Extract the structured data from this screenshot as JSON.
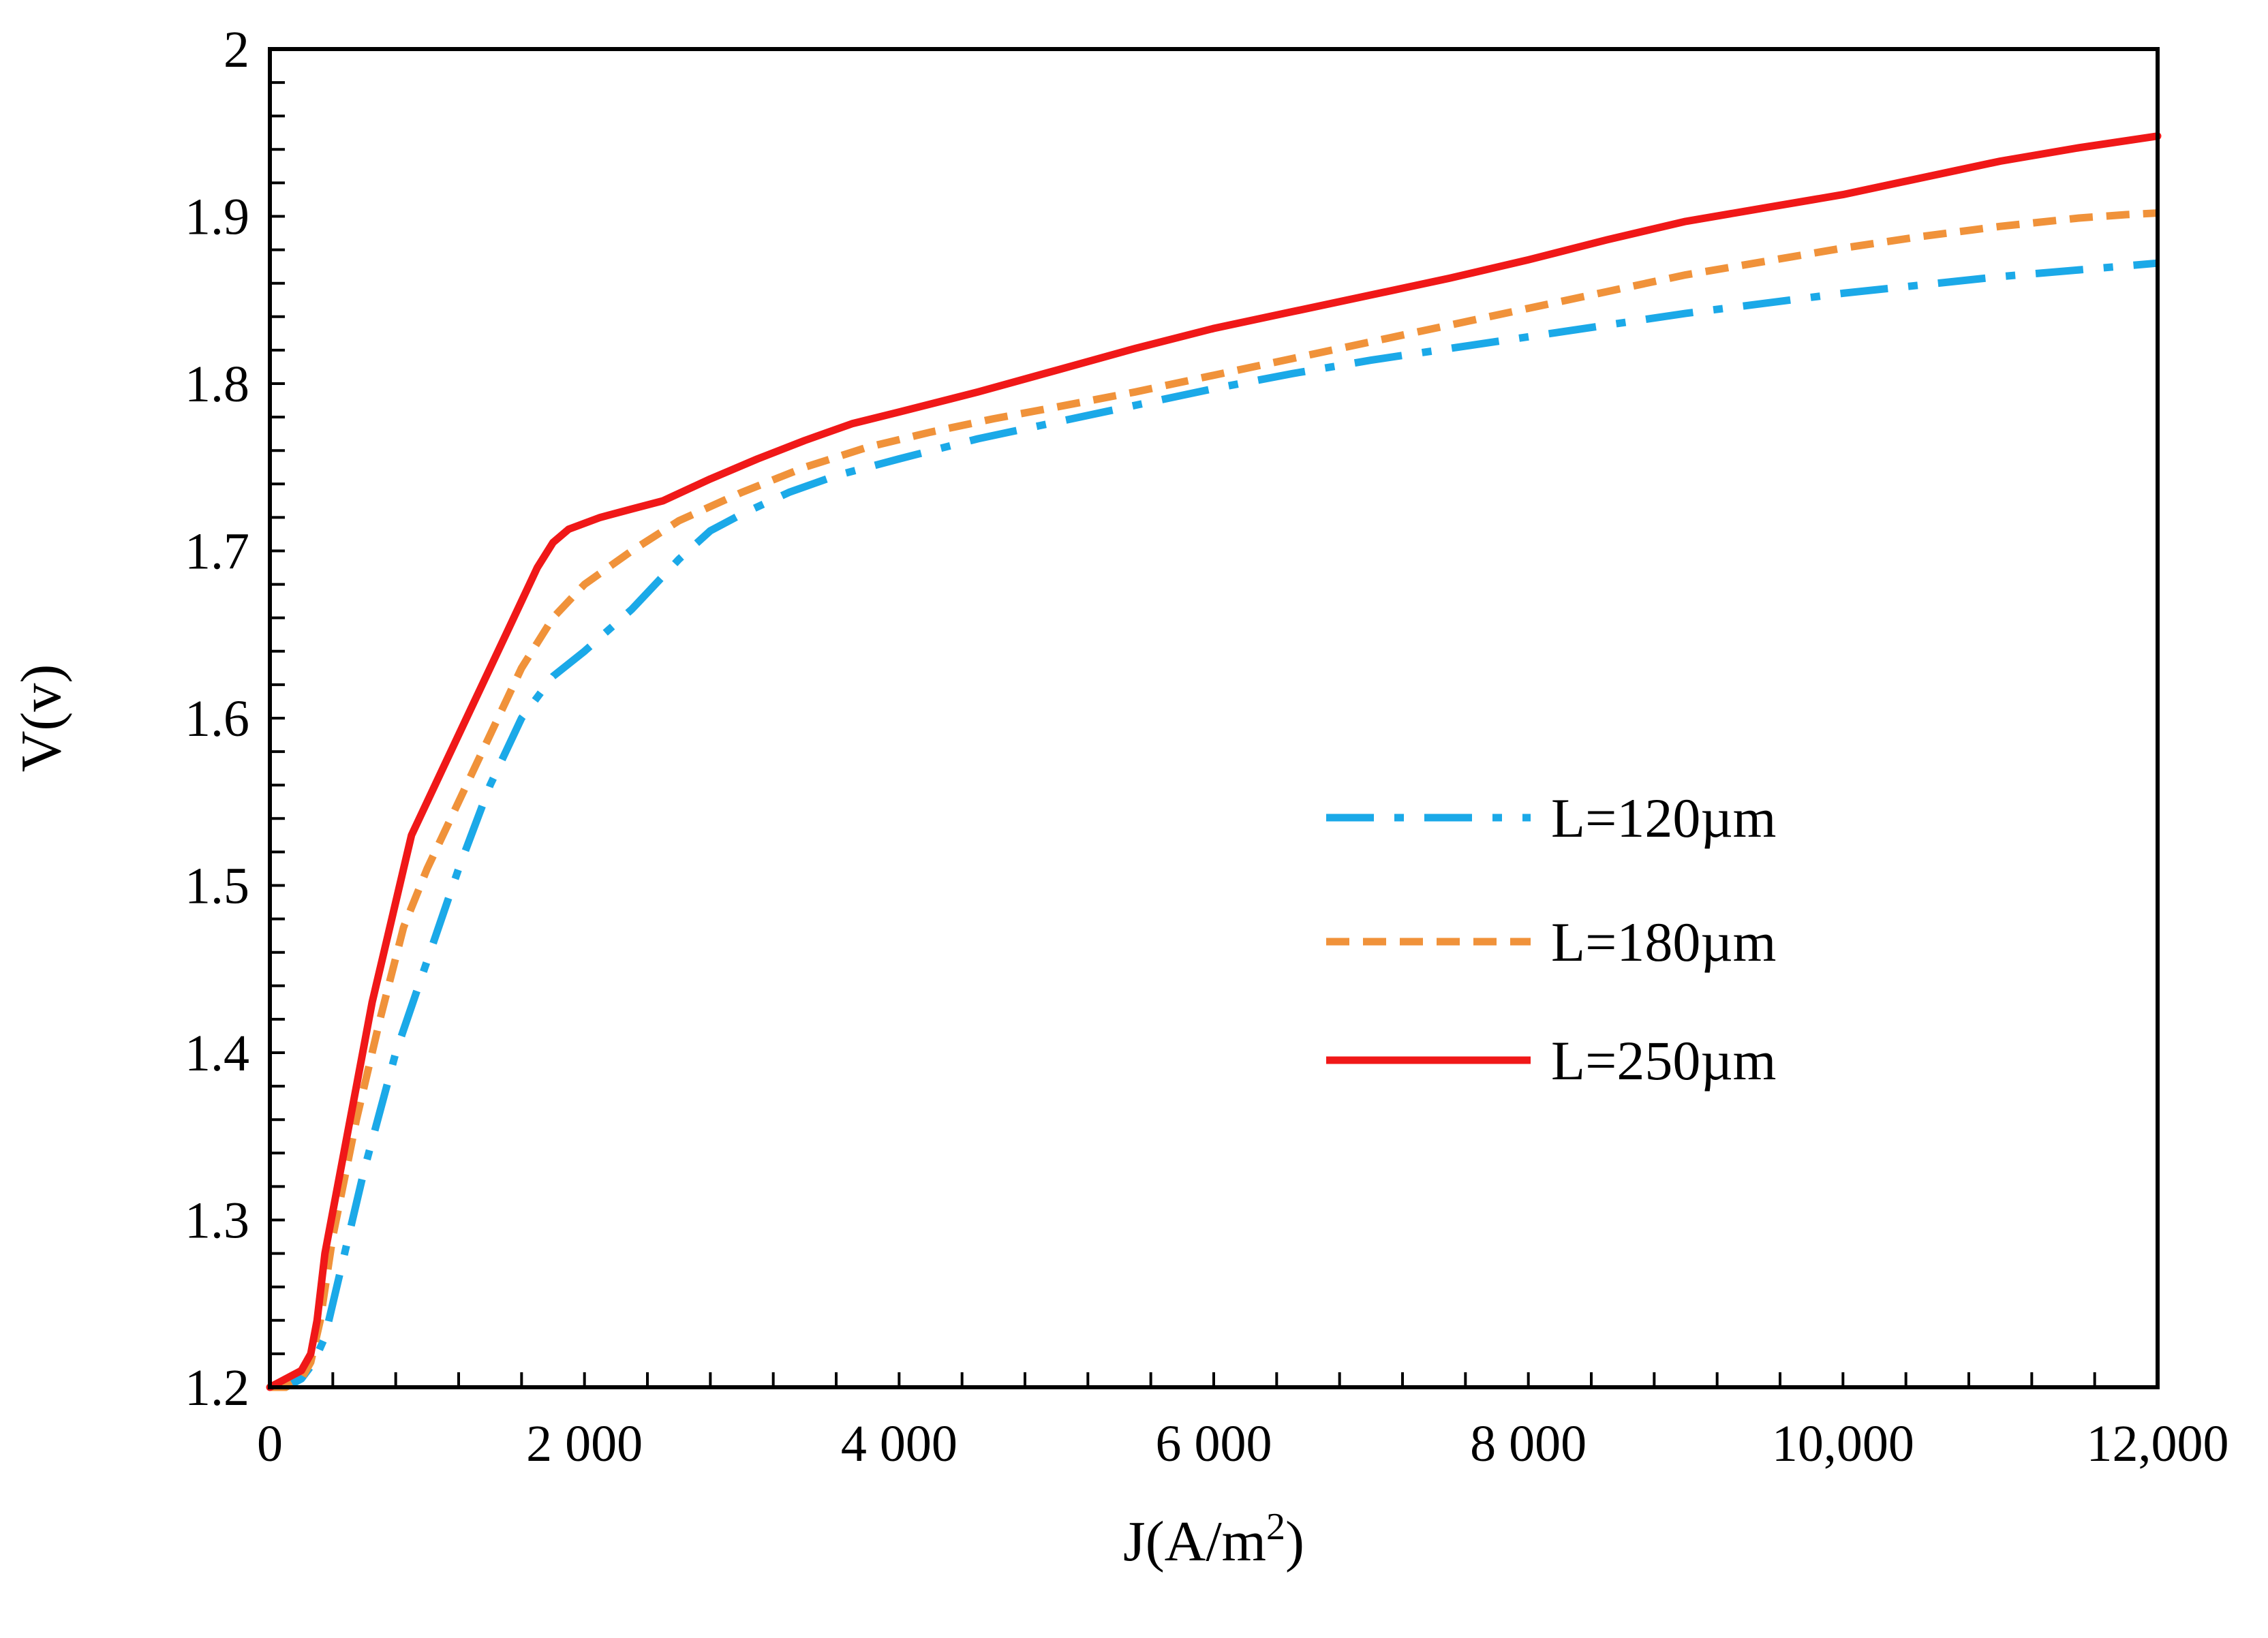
{
  "chart_data": {
    "type": "line",
    "title": "",
    "xlabel": "J(A/m",
    "xlabel_sup": "2",
    "xlabel_close": ")",
    "ylabel": "V(v)",
    "xlim": [
      0,
      12000
    ],
    "ylim": [
      1.2,
      2.0
    ],
    "grid": false,
    "legend_position": "center-right",
    "x_ticks": [
      0,
      2000,
      4000,
      6000,
      8000,
      10000,
      12000
    ],
    "x_tick_labels": [
      "0",
      "2 000",
      "4 000",
      "6 000",
      "8 000",
      "10,000",
      "12,000"
    ],
    "y_ticks": [
      1.2,
      1.3,
      1.4,
      1.5,
      1.6,
      1.7,
      1.8,
      1.9,
      2.0
    ],
    "y_tick_labels": [
      "1.2",
      "1.3",
      "1.4",
      "1.5",
      "1.6",
      "1.7",
      "1.8",
      "1.9",
      "2"
    ],
    "series": [
      {
        "name": "L=120µm",
        "color": "#1BA9E8",
        "style": "dashdot",
        "x": [
          0,
          100,
          200,
          280,
          350,
          450,
          600,
          800,
          1000,
          1200,
          1400,
          1600,
          1800,
          2000,
          2300,
          2600,
          2800,
          3000,
          3300,
          3600,
          4000,
          4500,
          5000,
          5500,
          6000,
          6500,
          7000,
          7500,
          8000,
          8500,
          9000,
          9500,
          10000,
          10500,
          11000,
          11500,
          12000
        ],
        "y": [
          1.2,
          1.2,
          1.205,
          1.215,
          1.23,
          1.27,
          1.33,
          1.4,
          1.455,
          1.51,
          1.56,
          1.6,
          1.625,
          1.64,
          1.665,
          1.695,
          1.712,
          1.722,
          1.735,
          1.745,
          1.755,
          1.767,
          1.777,
          1.787,
          1.797,
          1.806,
          1.814,
          1.821,
          1.828,
          1.835,
          1.842,
          1.848,
          1.854,
          1.859,
          1.864,
          1.868,
          1.872
        ]
      },
      {
        "name": "L=180µm",
        "color": "#F0923A",
        "style": "dashed",
        "x": [
          0,
          100,
          200,
          260,
          320,
          400,
          550,
          700,
          850,
          1000,
          1200,
          1400,
          1600,
          1800,
          2000,
          2300,
          2600,
          3000,
          3400,
          3800,
          4200,
          4600,
          5000,
          5500,
          6000,
          6500,
          7000,
          7500,
          8000,
          8500,
          9000,
          9500,
          10000,
          10500,
          11000,
          11500,
          11800,
          12000
        ],
        "y": [
          1.2,
          1.2,
          1.205,
          1.215,
          1.24,
          1.29,
          1.36,
          1.42,
          1.475,
          1.51,
          1.55,
          1.59,
          1.63,
          1.66,
          1.68,
          1.7,
          1.718,
          1.735,
          1.75,
          1.762,
          1.771,
          1.779,
          1.786,
          1.795,
          1.805,
          1.815,
          1.825,
          1.835,
          1.845,
          1.855,
          1.865,
          1.873,
          1.881,
          1.888,
          1.894,
          1.899,
          1.901,
          1.902
        ]
      },
      {
        "name": "L=250µm",
        "color": "#F01818",
        "style": "solid",
        "x": [
          0,
          100,
          200,
          260,
          300,
          350,
          450,
          550,
          650,
          750,
          850,
          900,
          950,
          1100,
          1300,
          1500,
          1700,
          1800,
          1900,
          2100,
          2300,
          2500,
          2800,
          3100,
          3400,
          3700,
          4000,
          4500,
          5000,
          5500,
          6000,
          6500,
          7000,
          7500,
          8000,
          8500,
          9000,
          9500,
          10000,
          10500,
          11000,
          11500,
          12000
        ],
        "y": [
          1.2,
          1.205,
          1.21,
          1.22,
          1.24,
          1.28,
          1.33,
          1.38,
          1.43,
          1.47,
          1.51,
          1.53,
          1.54,
          1.57,
          1.61,
          1.65,
          1.69,
          1.705,
          1.713,
          1.72,
          1.725,
          1.73,
          1.743,
          1.755,
          1.766,
          1.776,
          1.783,
          1.795,
          1.808,
          1.821,
          1.833,
          1.843,
          1.853,
          1.863,
          1.874,
          1.886,
          1.897,
          1.905,
          1.913,
          1.923,
          1.933,
          1.941,
          1.948
        ]
      }
    ]
  }
}
